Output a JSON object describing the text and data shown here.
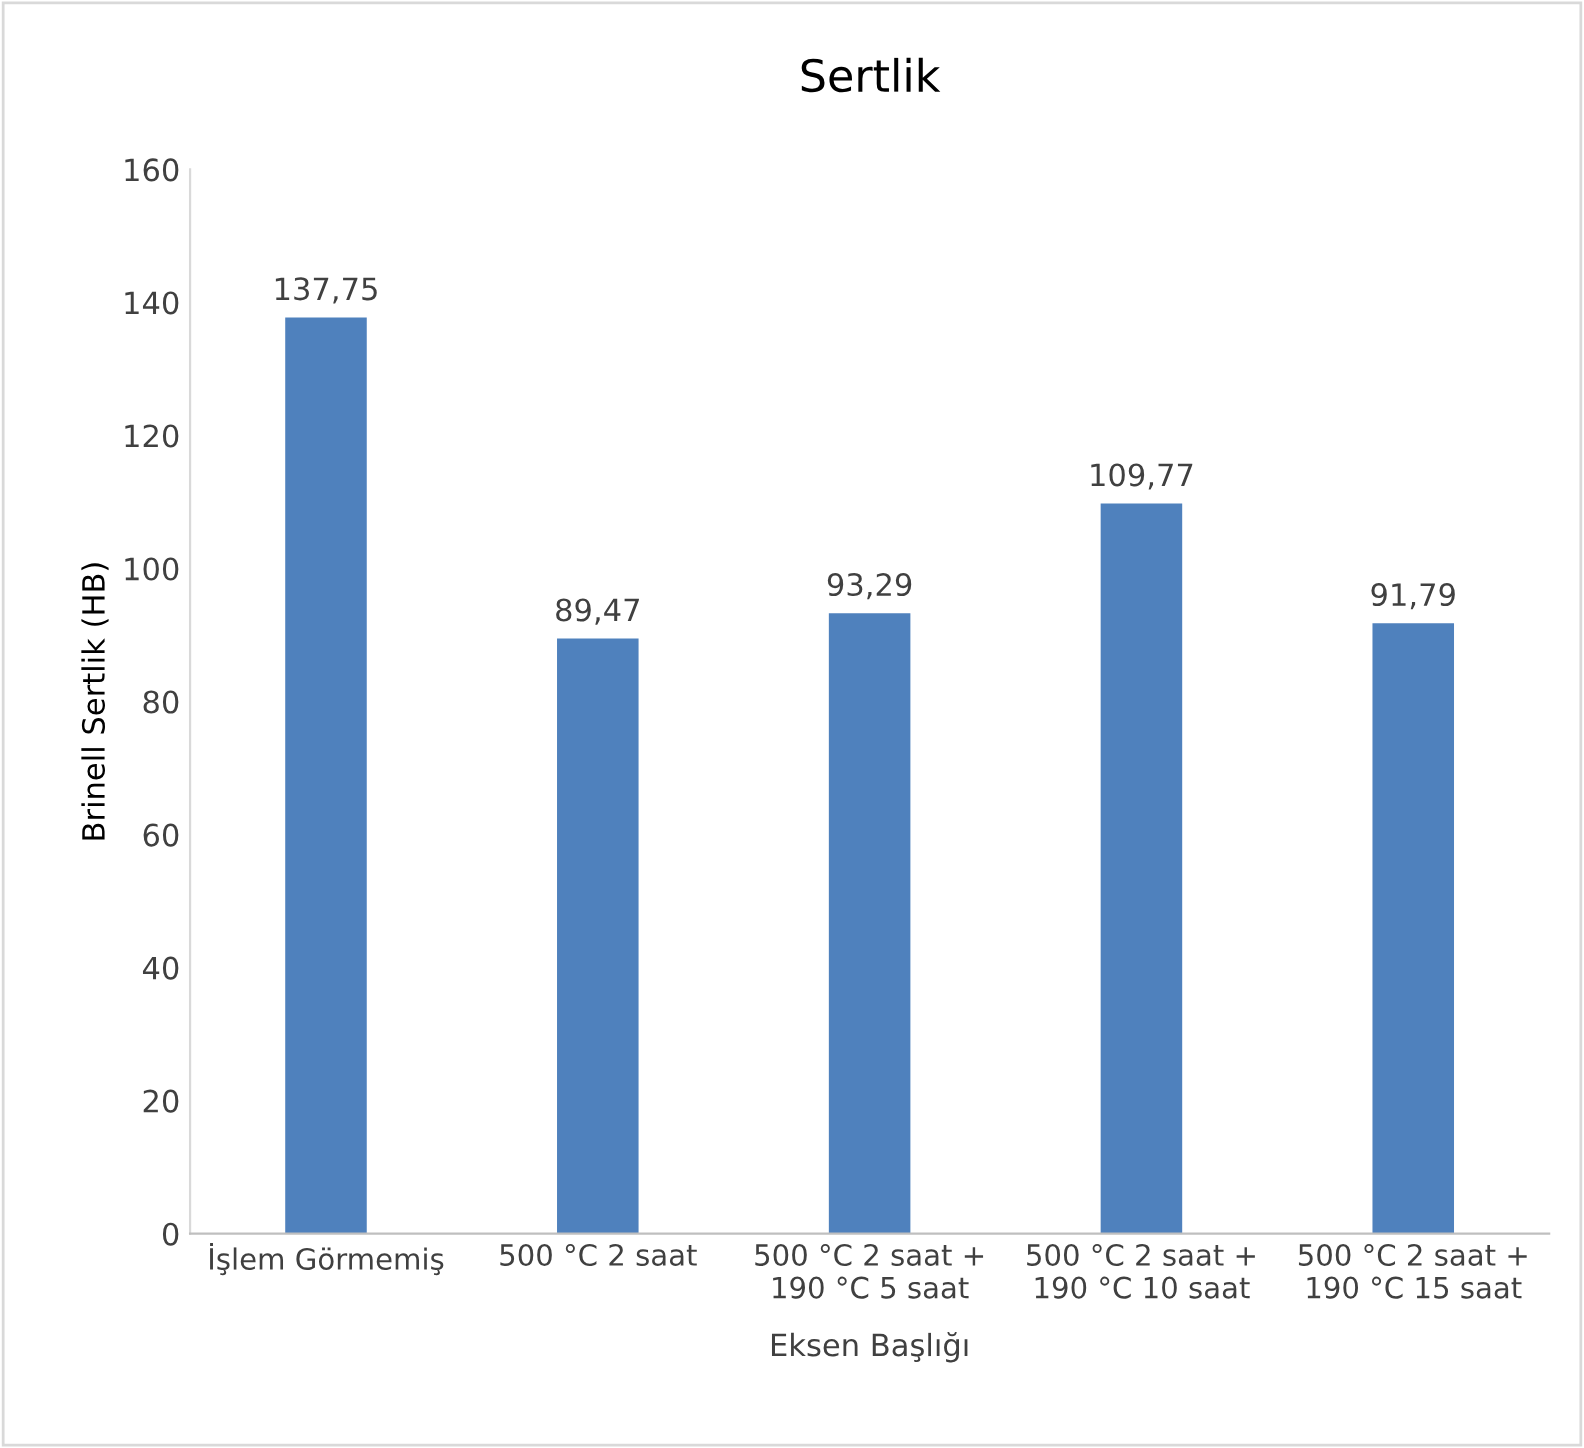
{
  "chart_data": {
    "type": "bar",
    "title": "Sertlik",
    "xlabel": "Eksen Başlığı",
    "ylabel": "Brinell Sertlik (HB)",
    "categories": [
      "İşlem Görmemiş",
      "500 °C 2 saat",
      "500 °C 2 saat +\n190 °C 5 saat",
      "500 °C 2 saat +\n190 °C 10 saat",
      "500 °C 2 saat +\n190 °C 15 saat"
    ],
    "values": [
      137.75,
      89.47,
      93.29,
      109.77,
      91.79
    ],
    "value_labels": [
      "137,75",
      "89,47",
      "93,29",
      "109,77",
      "91,79"
    ],
    "color": "#4f81bd",
    "ylim": [
      0,
      160
    ],
    "yticks": [
      0,
      20,
      40,
      60,
      80,
      100,
      120,
      140,
      160
    ],
    "grid": false
  }
}
